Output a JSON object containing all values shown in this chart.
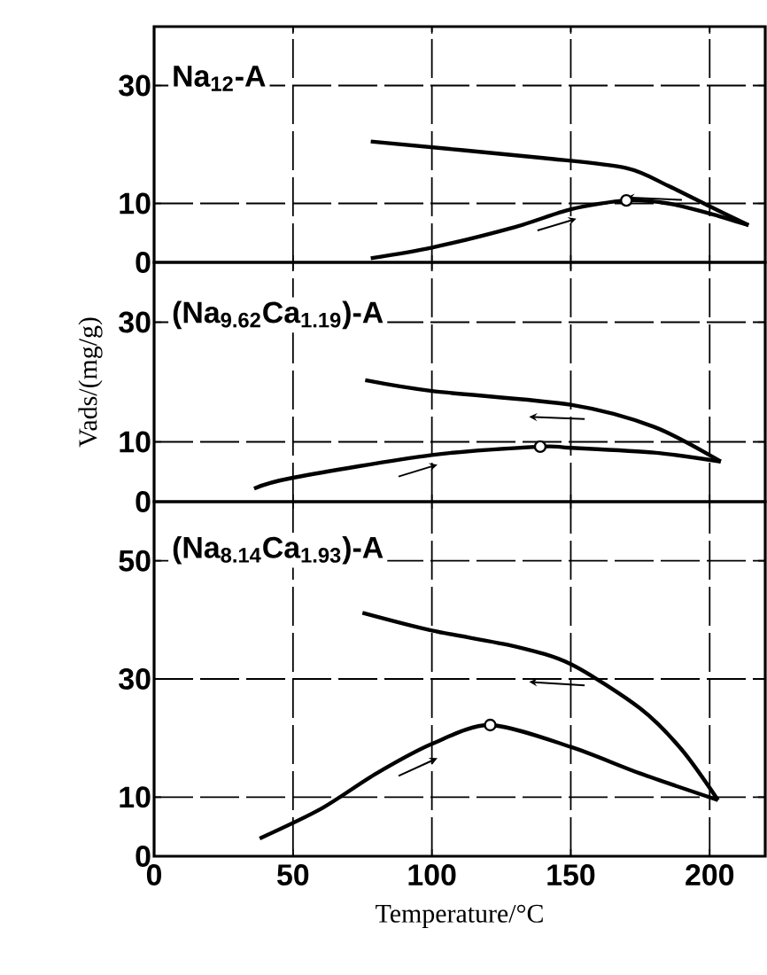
{
  "chart_data": [
    {
      "type": "line",
      "title": "Na$_{12}$-A",
      "xlim": [
        0,
        220
      ],
      "xticks": [
        0,
        50,
        100,
        150,
        200
      ],
      "ylim": [
        0,
        40
      ],
      "yticks": [
        0,
        10,
        30
      ],
      "grid": true,
      "tick_labels": "y",
      "series": [
        {
          "color": "#000000",
          "x": [
            78,
            140,
            170,
            185,
            200,
            214
          ],
          "values": [
            20.5,
            17.7,
            16,
            13,
            9.5,
            6.3
          ]
        },
        {
          "color": "#000000",
          "x": [
            78,
            100,
            130,
            150,
            170,
            185,
            200,
            214
          ],
          "values": [
            0.7,
            2.5,
            6,
            9,
            10.5,
            10,
            8.3,
            6.3
          ]
        },
        {
          "type": "scatter",
          "marker": "circle",
          "color": "#000000",
          "x": [
            170
          ],
          "values": [
            10.5
          ]
        }
      ]
    },
    {
      "type": "line",
      "title": "(Na$_{9.62}$Ca$_{1.19}$)-A",
      "ylabel": "Vads/(mg/g)",
      "xlim": [
        0,
        220
      ],
      "xticks": [
        0,
        50,
        100,
        150,
        200
      ],
      "ylim": [
        0,
        40
      ],
      "yticks": [
        0,
        10,
        30
      ],
      "grid": true,
      "tick_labels": "y",
      "series": [
        {
          "color": "#000000",
          "x": [
            76,
            100,
            150,
            180,
            204
          ],
          "values": [
            20.3,
            18.5,
            16.2,
            12.5,
            6.7
          ]
        },
        {
          "color": "#000000",
          "x": [
            36,
            50,
            100,
            139,
            150,
            180,
            204
          ],
          "values": [
            2.2,
            4,
            7.8,
            9.2,
            9,
            8.2,
            6.7
          ]
        },
        {
          "type": "scatter",
          "marker": "circle",
          "color": "#000000",
          "x": [
            139
          ],
          "values": [
            9.2
          ]
        }
      ]
    },
    {
      "type": "line",
      "title": "(Na$_{8.14}$Ca$_{1.93}$)-A",
      "xlabel": "Temperature/°C",
      "xlim": [
        0,
        220
      ],
      "xticks": [
        0,
        50,
        100,
        150,
        200
      ],
      "ylim": [
        0,
        60
      ],
      "yticks": [
        0,
        10,
        30,
        50
      ],
      "grid": true,
      "series": [
        {
          "color": "#000000",
          "x": [
            75,
            100,
            130,
            150,
            175,
            190,
            203
          ],
          "values": [
            41.2,
            38.2,
            35.5,
            32.5,
            25,
            18,
            9.5
          ]
        },
        {
          "color": "#000000",
          "x": [
            38,
            60,
            80,
            100,
            121,
            150,
            175,
            203
          ],
          "values": [
            3,
            8,
            14,
            19,
            22.2,
            18.5,
            14,
            9.5
          ]
        },
        {
          "type": "scatter",
          "marker": "circle",
          "color": "#000000",
          "x": [
            121
          ],
          "values": [
            22.2
          ]
        }
      ]
    }
  ]
}
